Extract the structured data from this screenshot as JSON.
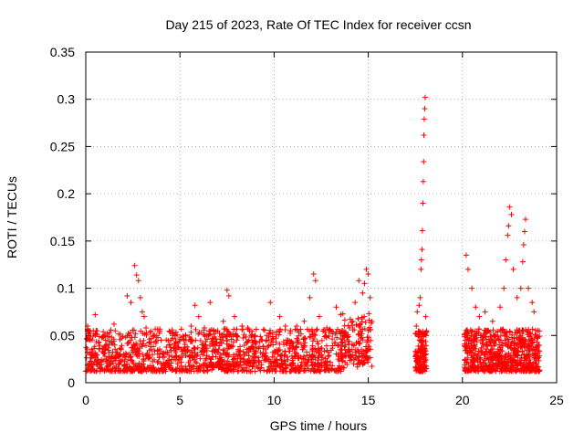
{
  "chart_data": {
    "type": "scatter",
    "title": "Day 215 of 2023, Rate Of TEC Index for receiver ccsn",
    "xlabel": "GPS time / hours",
    "ylabel": "ROTI / TECUs",
    "xlim": [
      0,
      25
    ],
    "ylim": [
      0,
      0.35
    ],
    "xticks": [
      0,
      5,
      10,
      15,
      20,
      25
    ],
    "xtick_labels": [
      "0",
      "5",
      "10",
      "15",
      "20",
      "25"
    ],
    "yticks": [
      0,
      0.05,
      0.1,
      0.15,
      0.2,
      0.25,
      0.3,
      0.35
    ],
    "ytick_labels": [
      "0",
      "0.05",
      "0.1",
      "0.15",
      "0.2",
      "0.25",
      "0.3",
      "0.35"
    ],
    "grid": true,
    "marker": "+",
    "series": [
      {
        "name": "ROTI",
        "color": "#ff0000",
        "points": [
          [
            0.1,
            0.06
          ],
          [
            0.2,
            0.045
          ],
          [
            0.3,
            0.035
          ],
          [
            0.5,
            0.072
          ],
          [
            0.6,
            0.055
          ],
          [
            1.0,
            0.05
          ],
          [
            1.5,
            0.062
          ],
          [
            2.2,
            0.092
          ],
          [
            2.4,
            0.085
          ],
          [
            2.6,
            0.124
          ],
          [
            2.7,
            0.114
          ],
          [
            2.8,
            0.108
          ],
          [
            2.9,
            0.09
          ],
          [
            3.0,
            0.075
          ],
          [
            3.1,
            0.07
          ],
          [
            3.2,
            0.058
          ],
          [
            3.6,
            0.05
          ],
          [
            4.0,
            0.045
          ],
          [
            4.6,
            0.05
          ],
          [
            5.2,
            0.045
          ],
          [
            5.6,
            0.06
          ],
          [
            5.8,
            0.082
          ],
          [
            6.0,
            0.07
          ],
          [
            6.3,
            0.058
          ],
          [
            6.6,
            0.085
          ],
          [
            7.0,
            0.055
          ],
          [
            7.3,
            0.065
          ],
          [
            7.5,
            0.098
          ],
          [
            7.6,
            0.092
          ],
          [
            7.9,
            0.07
          ],
          [
            8.3,
            0.06
          ],
          [
            8.6,
            0.058
          ],
          [
            9.0,
            0.05
          ],
          [
            9.6,
            0.05
          ],
          [
            9.8,
            0.085
          ],
          [
            10.3,
            0.07
          ],
          [
            10.6,
            0.06
          ],
          [
            11.2,
            0.06
          ],
          [
            11.6,
            0.065
          ],
          [
            11.9,
            0.09
          ],
          [
            12.1,
            0.115
          ],
          [
            12.2,
            0.108
          ],
          [
            12.4,
            0.07
          ],
          [
            12.8,
            0.058
          ],
          [
            13.3,
            0.08
          ],
          [
            13.6,
            0.055
          ],
          [
            14.0,
            0.058
          ],
          [
            14.3,
            0.085
          ],
          [
            14.5,
            0.108
          ],
          [
            14.7,
            0.095
          ],
          [
            14.8,
            0.105
          ],
          [
            14.9,
            0.12
          ],
          [
            15.0,
            0.115
          ],
          [
            15.1,
            0.09
          ],
          [
            17.55,
            0.06
          ],
          [
            17.6,
            0.075
          ],
          [
            17.7,
            0.082
          ],
          [
            17.75,
            0.09
          ],
          [
            17.8,
            0.12
          ],
          [
            17.82,
            0.13
          ],
          [
            17.85,
            0.141
          ],
          [
            17.87,
            0.161
          ],
          [
            17.9,
            0.19
          ],
          [
            17.92,
            0.213
          ],
          [
            17.94,
            0.234
          ],
          [
            17.95,
            0.262
          ],
          [
            17.97,
            0.279
          ],
          [
            18.0,
            0.29
          ],
          [
            18.02,
            0.302
          ],
          [
            18.05,
            0.07
          ],
          [
            18.1,
            0.055
          ],
          [
            20.2,
            0.135
          ],
          [
            20.3,
            0.12
          ],
          [
            20.5,
            0.1
          ],
          [
            20.7,
            0.08
          ],
          [
            20.9,
            0.07
          ],
          [
            21.2,
            0.075
          ],
          [
            21.6,
            0.065
          ],
          [
            22.0,
            0.08
          ],
          [
            22.2,
            0.1
          ],
          [
            22.3,
            0.13
          ],
          [
            22.4,
            0.156
          ],
          [
            22.45,
            0.166
          ],
          [
            22.5,
            0.186
          ],
          [
            22.6,
            0.178
          ],
          [
            22.7,
            0.12
          ],
          [
            22.9,
            0.09
          ],
          [
            23.1,
            0.1
          ],
          [
            23.2,
            0.128
          ],
          [
            23.25,
            0.146
          ],
          [
            23.3,
            0.16
          ],
          [
            23.35,
            0.173
          ],
          [
            23.5,
            0.1
          ],
          [
            23.7,
            0.085
          ],
          [
            23.8,
            0.075
          ],
          [
            24.0,
            0.055
          ]
        ]
      }
    ]
  }
}
